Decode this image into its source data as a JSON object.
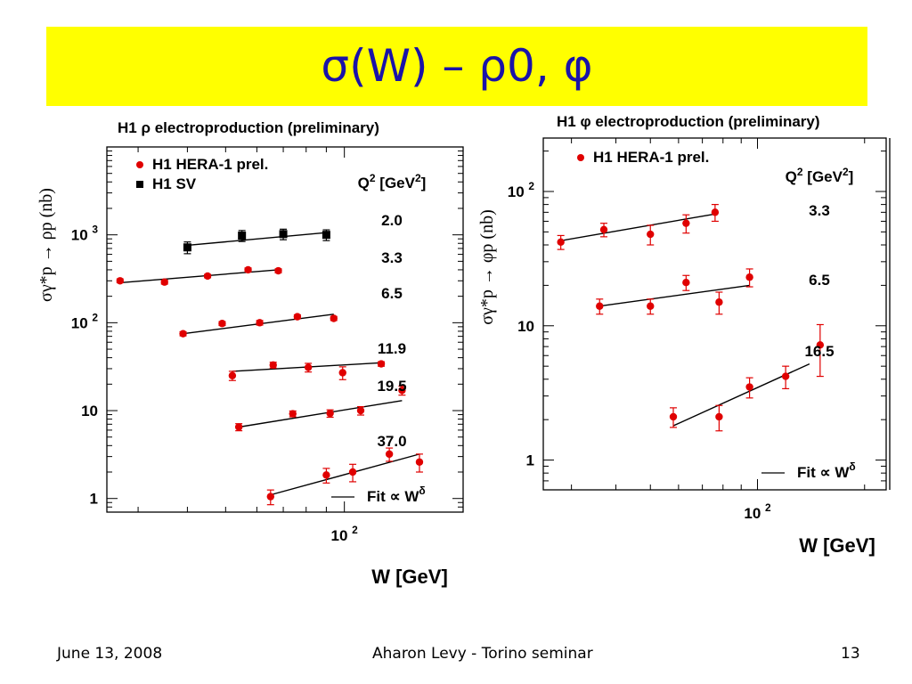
{
  "slide": {
    "title": "σ(W) – ρ0, φ",
    "footer": {
      "date": "June 13, 2008",
      "center": "Aharon Levy - Torino seminar",
      "page": "13"
    }
  },
  "colors": {
    "banner": "#ffff00",
    "title": "#1a13a8",
    "h1_points": "#e00000",
    "sv_points": "#000000",
    "fit_line": "#000000"
  },
  "chart_data": [
    {
      "type": "scatter",
      "title": "H1 ρ electroproduction (preliminary)",
      "xlabel": "W [GeV]",
      "ylabel": "σγ*p → ρp (nb)",
      "x_scale": "log",
      "y_scale": "log",
      "xlim": [
        25,
        200
      ],
      "ylim": [
        0.7,
        10000
      ],
      "x_tick_labels": [
        "10²"
      ],
      "y_tick_labels": [
        "1",
        "10",
        "10²",
        "10³"
      ],
      "legend": [
        "H1 HERA-1 prel.",
        "H1 SV"
      ],
      "legend_position": "top-left",
      "q2_header": "Q² [GeV²]",
      "fit_legend": "Fit ∝ W^δ",
      "fit_legend_position": "bottom-right",
      "series": [
        {
          "name": "H1 SV",
          "q2": "2.0",
          "marker": "square",
          "color": "#000000",
          "x": [
            40,
            55,
            70,
            90
          ],
          "y": [
            720,
            980,
            1020,
            1000
          ],
          "err": [
            110,
            140,
            140,
            140
          ],
          "fit": [
            [
              40,
              760
            ],
            [
              90,
              1060
            ]
          ]
        },
        {
          "q2": "3.3",
          "marker": "circle",
          "color": "#e00000",
          "x": [
            27,
            35,
            45,
            57,
            68
          ],
          "y": [
            300,
            290,
            340,
            400,
            390
          ],
          "err": [
            15,
            15,
            15,
            20,
            20
          ],
          "fit": [
            [
              27,
              285
            ],
            [
              68,
              400
            ]
          ]
        },
        {
          "q2": "6.5",
          "marker": "circle",
          "color": "#e00000",
          "x": [
            39,
            49,
            61,
            76,
            94
          ],
          "y": [
            75,
            98,
            100,
            117,
            112
          ],
          "err": [
            4,
            5,
            6,
            6,
            6
          ],
          "fit": [
            [
              39,
              75
            ],
            [
              94,
              125
            ]
          ]
        },
        {
          "q2": "11.9",
          "marker": "circle",
          "color": "#e00000",
          "x": [
            52,
            66,
            81,
            99,
            124
          ],
          "y": [
            25,
            33,
            31,
            27,
            34
          ],
          "err": [
            3,
            2.5,
            3.5,
            4.5,
            2
          ],
          "fit": [
            [
              52,
              28
            ],
            [
              124,
              35
            ]
          ]
        },
        {
          "q2": "19.5",
          "marker": "circle",
          "color": "#e00000",
          "x": [
            54,
            74,
            92,
            110,
            140
          ],
          "y": [
            6.5,
            9.2,
            9.3,
            10,
            17
          ],
          "err": [
            0.6,
            0.7,
            0.9,
            1.1,
            2
          ],
          "fit": [
            [
              54,
              6.5
            ],
            [
              140,
              13
            ]
          ]
        },
        {
          "q2": "37.0",
          "marker": "circle",
          "color": "#e00000",
          "x": [
            65,
            90,
            105,
            130,
            155
          ],
          "y": [
            1.05,
            1.85,
            2.0,
            3.2,
            2.6
          ],
          "err": [
            0.2,
            0.35,
            0.45,
            0.55,
            0.6
          ],
          "fit": [
            [
              65,
              1.1
            ],
            [
              155,
              3.2
            ]
          ]
        }
      ]
    },
    {
      "type": "scatter",
      "title": "H1 φ electroproduction (preliminary)",
      "xlabel": "W [GeV]",
      "ylabel": "σγ*p → φp (nb)",
      "x_scale": "log",
      "y_scale": "log",
      "xlim": [
        25,
        230
      ],
      "ylim": [
        0.6,
        250
      ],
      "x_tick_labels": [
        "10²"
      ],
      "y_tick_labels": [
        "1",
        "10",
        "10²"
      ],
      "legend": [
        "H1 HERA-1 prel."
      ],
      "legend_position": "top-left",
      "q2_header": "Q² [GeV²]",
      "fit_legend": "Fit ∝ W^δ",
      "fit_legend_position": "bottom-right",
      "series": [
        {
          "q2": "3.3",
          "marker": "circle",
          "color": "#e00000",
          "x": [
            28,
            37,
            50,
            63,
            76
          ],
          "y": [
            42,
            52,
            48,
            58,
            70
          ],
          "err": [
            5,
            6,
            8,
            9,
            10
          ],
          "fit": [
            [
              28,
              43
            ],
            [
              76,
              68
            ]
          ]
        },
        {
          "q2": "6.5",
          "marker": "circle",
          "color": "#e00000",
          "x": [
            36,
            50,
            63,
            78,
            95
          ],
          "y": [
            14,
            14,
            21,
            15,
            23
          ],
          "err": [
            1.8,
            1.8,
            2.7,
            2.8,
            3.5
          ],
          "fit": [
            [
              36,
              14
            ],
            [
              95,
              20
            ]
          ]
        },
        {
          "q2": "16.5",
          "marker": "circle",
          "color": "#e00000",
          "x": [
            58,
            78,
            95,
            120,
            150
          ],
          "y": [
            2.1,
            2.1,
            3.5,
            4.2,
            7.2
          ],
          "err": [
            0.35,
            0.45,
            0.6,
            0.8,
            3
          ],
          "fit": [
            [
              58,
              1.8
            ],
            [
              140,
              5.2
            ]
          ]
        }
      ]
    }
  ]
}
